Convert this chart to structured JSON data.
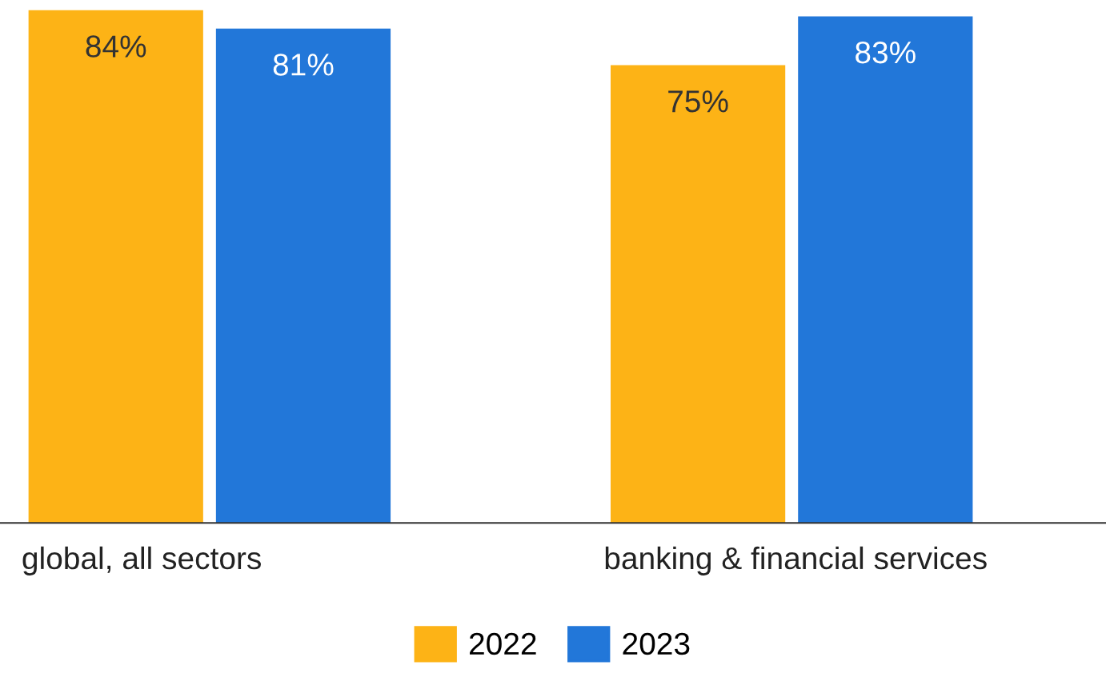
{
  "chart_data": {
    "type": "bar",
    "categories": [
      "global, all sectors",
      "banking & financial services"
    ],
    "series": [
      {
        "name": "2022",
        "color": "#fdb316",
        "values": [
          84,
          75
        ],
        "value_labels": [
          "84%",
          "75%"
        ]
      },
      {
        "name": "2023",
        "color": "#2277d9",
        "values": [
          81,
          83
        ],
        "value_labels": [
          "81%",
          "83%"
        ]
      }
    ],
    "legend": "bottom"
  }
}
